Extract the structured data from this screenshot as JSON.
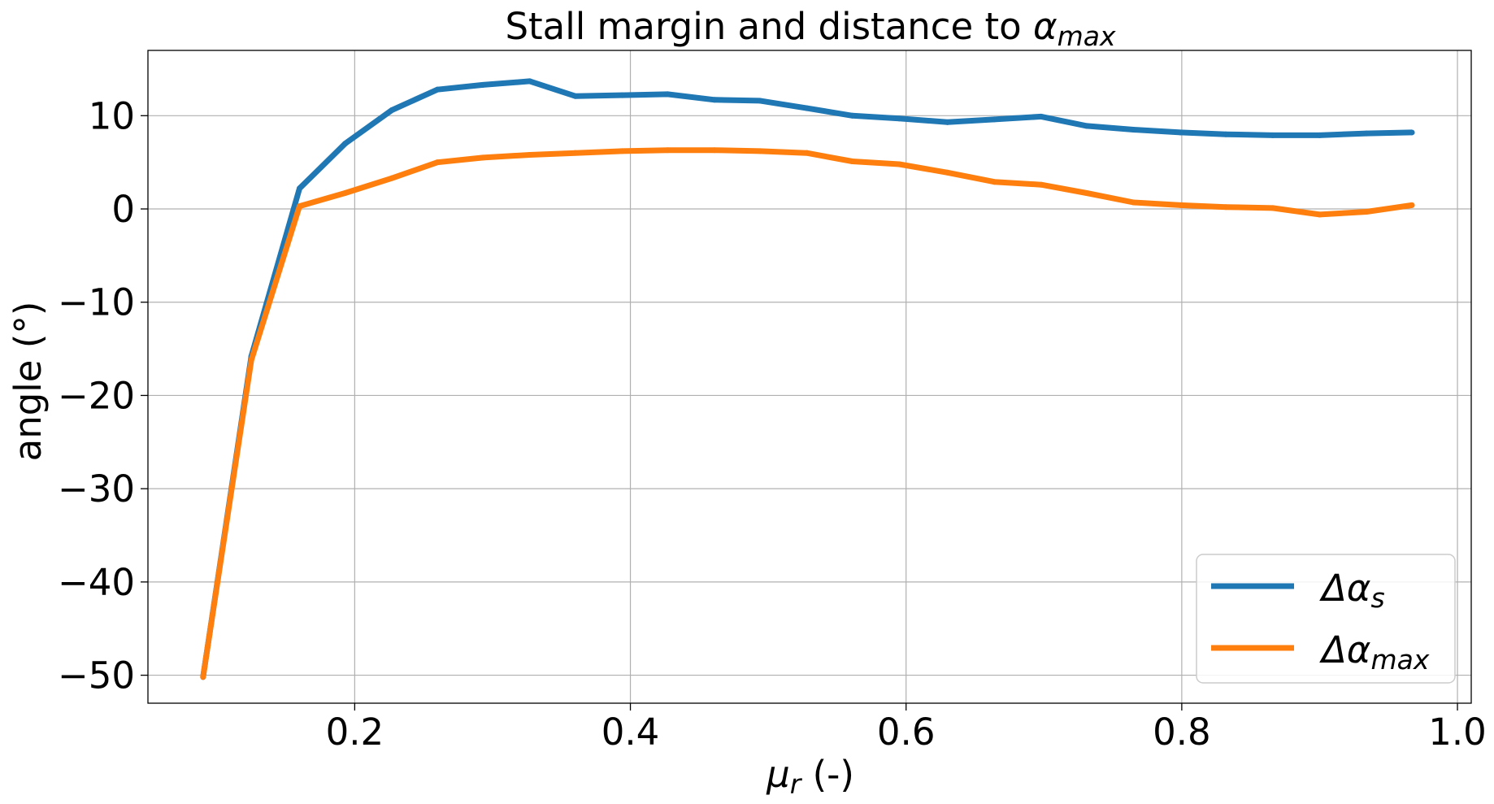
{
  "chart_data": {
    "type": "line",
    "title": "Stall margin and distance to αmax",
    "title_parts": {
      "main": "Stall margin and distance to ",
      "symbol": "α",
      "sub": "max"
    },
    "xlabel": "μr (-)",
    "xlabel_parts": {
      "symbol": "μ",
      "sub": "r",
      "rest": " (-)"
    },
    "ylabel": "angle (°)",
    "xlim": [
      0.05,
      1.01
    ],
    "ylim": [
      -53,
      17
    ],
    "x_ticks": [
      0.2,
      0.4,
      0.6,
      0.8,
      1.0
    ],
    "x_tick_labels": [
      "0.2",
      "0.4",
      "0.6",
      "0.8",
      "1.0"
    ],
    "y_ticks": [
      -50,
      -40,
      -30,
      -20,
      -10,
      0,
      10
    ],
    "y_tick_labels": [
      "−50",
      "−40",
      "−30",
      "−20",
      "−10",
      "0",
      "10"
    ],
    "grid": true,
    "legend_position": "bottom-right",
    "x": [
      0.09,
      0.125,
      0.16,
      0.193,
      0.227,
      0.26,
      0.293,
      0.327,
      0.36,
      0.394,
      0.427,
      0.461,
      0.494,
      0.528,
      0.561,
      0.595,
      0.63,
      0.664,
      0.698,
      0.731,
      0.765,
      0.799,
      0.832,
      0.866,
      0.9,
      0.934,
      0.967
    ],
    "series": [
      {
        "name": "Δαs",
        "name_parts": {
          "symbol": "Δα",
          "sub": "s"
        },
        "color": "#1f77b4",
        "values": [
          -50.2,
          -15.8,
          2.2,
          7.0,
          10.6,
          12.8,
          13.3,
          13.7,
          12.1,
          12.2,
          12.3,
          11.7,
          11.6,
          10.8,
          10.0,
          9.7,
          9.3,
          9.6,
          9.9,
          8.9,
          8.5,
          8.2,
          8.0,
          7.9,
          7.9,
          8.1,
          8.2
        ]
      },
      {
        "name": "Δαmax",
        "name_parts": {
          "symbol": "Δα",
          "sub": "max"
        },
        "color": "#ff7f0e",
        "values": [
          -50.2,
          -16.2,
          0.3,
          1.7,
          3.3,
          5.0,
          5.5,
          5.8,
          6.0,
          6.2,
          6.3,
          6.3,
          6.2,
          6.0,
          5.1,
          4.8,
          3.9,
          2.9,
          2.6,
          1.7,
          0.7,
          0.4,
          0.2,
          0.1,
          -0.6,
          -0.3,
          0.4
        ]
      }
    ]
  }
}
